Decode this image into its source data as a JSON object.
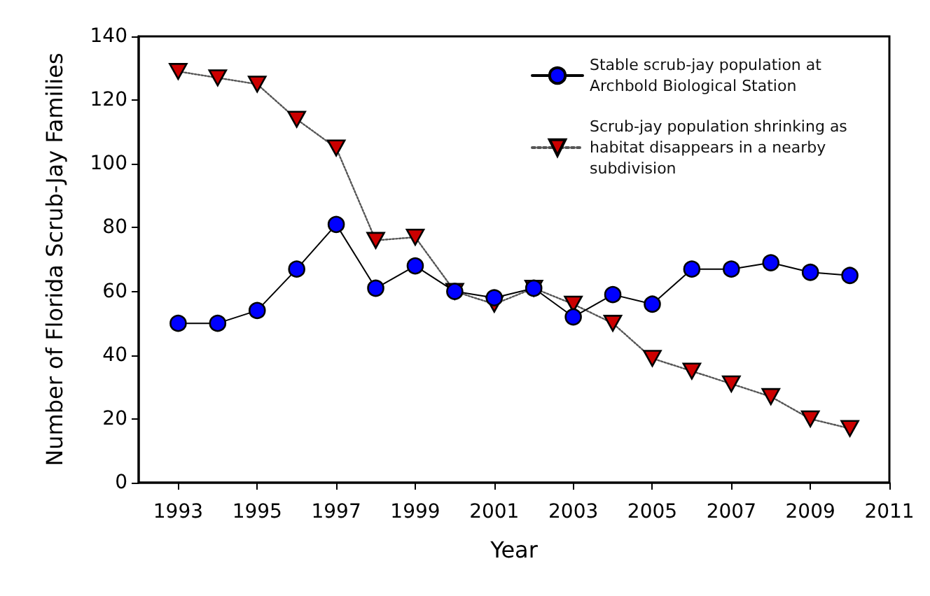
{
  "chart_data": {
    "type": "line",
    "xlabel": "Year",
    "ylabel": "Number of Florida Scrub-Jay Families",
    "x": [
      1993,
      1994,
      1995,
      1996,
      1997,
      1998,
      1999,
      2000,
      2001,
      2002,
      2003,
      2004,
      2005,
      2006,
      2007,
      2008,
      2009,
      2010
    ],
    "series": [
      {
        "name": "Stable scrub-jay population at Archbold Biological Station",
        "color": "#0000ff",
        "marker": "circle",
        "line_style": "solid",
        "values": [
          50,
          50,
          54,
          67,
          81,
          61,
          68,
          60,
          58,
          61,
          52,
          59,
          56,
          67,
          67,
          69,
          66,
          65
        ]
      },
      {
        "name": "Scrub-jay population shrinking as habitat disappears in a nearby subdivision",
        "color": "#cc0000",
        "marker": "triangle-down",
        "line_style": "dotted",
        "values": [
          129,
          127,
          125,
          114,
          105,
          76,
          77,
          60,
          56,
          61,
          56,
          50,
          39,
          35,
          31,
          27,
          20,
          17
        ]
      }
    ],
    "xlim": [
      1992,
      2011
    ],
    "xticks": [
      1993,
      1995,
      1997,
      1999,
      2001,
      2003,
      2005,
      2007,
      2009,
      2011
    ],
    "ylim": [
      0,
      140
    ],
    "yticks": [
      0,
      20,
      40,
      60,
      80,
      100,
      120,
      140
    ],
    "grid": false,
    "legend": "top right"
  }
}
